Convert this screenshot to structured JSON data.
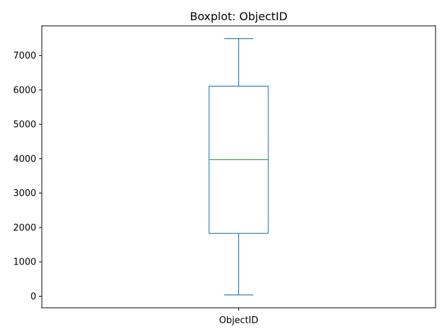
{
  "chart_data": {
    "type": "boxplot",
    "title": "Boxplot: ObjectID",
    "xlabel": "",
    "ylabel": "",
    "categories": [
      "ObjectID"
    ],
    "series": [
      {
        "name": "ObjectID",
        "whisker_low": 40,
        "q1": 1830,
        "median": 3975,
        "q3": 6110,
        "whisker_high": 7490
      }
    ],
    "y_ticks": [
      0,
      1000,
      2000,
      3000,
      4000,
      5000,
      6000,
      7000
    ],
    "y_tick_labels": [
      "0",
      "1000",
      "2000",
      "3000",
      "4000",
      "5000",
      "6000",
      "7000"
    ],
    "ylim": [
      -335,
      7865
    ],
    "grid": false,
    "legend": "none",
    "colors": {
      "box": "#1f77b4",
      "median": "#2ca02c",
      "axes": "#000000"
    }
  }
}
